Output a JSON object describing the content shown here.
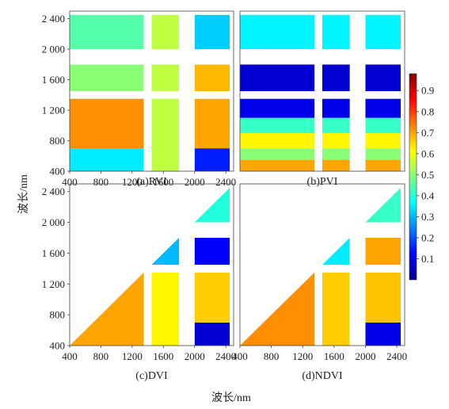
{
  "figure": {
    "xlabel": "波长/nm",
    "ylabel": "波长/nm",
    "colormap": "jet",
    "colorbar": {
      "range": [
        0,
        0.98
      ],
      "ticks": [
        "0.1",
        "0.2",
        "0.3",
        "0.4",
        "0.5",
        "0.6",
        "0.7",
        "0.8",
        "0.9"
      ]
    }
  },
  "chart_data": [
    {
      "type": "heatmap",
      "caption": "(a)RVI",
      "axis_range_nm": [
        400,
        2500
      ],
      "x_ticks": [
        "400",
        "800",
        "1200",
        "1600",
        "2000",
        "2400"
      ],
      "y_ticks": [
        "400",
        "800",
        "1 200",
        "1 600",
        "2 000",
        "2 400"
      ],
      "masked_bands_nm": [
        [
          1350,
          1450
        ],
        [
          1800,
          2000
        ]
      ],
      "region_values": [
        {
          "x_nm": [
            400,
            1350
          ],
          "y_nm": [
            400,
            700
          ],
          "value": 0.35
        },
        {
          "x_nm": [
            400,
            1350
          ],
          "y_nm": [
            700,
            1350
          ],
          "value": 0.72
        },
        {
          "x_nm": [
            400,
            1350
          ],
          "y_nm": [
            1450,
            1800
          ],
          "value": 0.5
        },
        {
          "x_nm": [
            400,
            1350
          ],
          "y_nm": [
            2000,
            2450
          ],
          "value": 0.45
        },
        {
          "x_nm": [
            1450,
            1800
          ],
          "y_nm": [
            400,
            2450
          ],
          "value": 0.55
        },
        {
          "x_nm": [
            2000,
            2450
          ],
          "y_nm": [
            400,
            700
          ],
          "value": 0.15
        },
        {
          "x_nm": [
            2000,
            2450
          ],
          "y_nm": [
            700,
            1350
          ],
          "value": 0.7
        },
        {
          "x_nm": [
            2000,
            2450
          ],
          "y_nm": [
            1450,
            1800
          ],
          "value": 0.68
        },
        {
          "x_nm": [
            2000,
            2450
          ],
          "y_nm": [
            2000,
            2450
          ],
          "value": 0.32
        }
      ]
    },
    {
      "type": "heatmap",
      "caption": "(b)PVI",
      "axis_range_nm": [
        400,
        2500
      ],
      "masked_bands_nm": [
        [
          1350,
          1450
        ],
        [
          1800,
          2000
        ]
      ],
      "row_values": [
        {
          "y_nm": [
            400,
            550
          ],
          "value": 0.7
        },
        {
          "y_nm": [
            550,
            700
          ],
          "value": 0.5
        },
        {
          "y_nm": [
            700,
            900
          ],
          "value": 0.62
        },
        {
          "y_nm": [
            900,
            1100
          ],
          "value": 0.42
        },
        {
          "y_nm": [
            1100,
            1350
          ],
          "value": 0.1
        },
        {
          "y_nm": [
            1450,
            1800
          ],
          "value": 0.08
        },
        {
          "y_nm": [
            2000,
            2450
          ],
          "value": 0.36
        }
      ]
    },
    {
      "type": "heatmap",
      "caption": "(c)DVI",
      "axis_range_nm": [
        400,
        2500
      ],
      "x_ticks": [
        "400",
        "800",
        "1200",
        "1600",
        "2000",
        "2400"
      ],
      "y_ticks": [
        "400",
        "800",
        "1 200",
        "1 600",
        "2 000",
        "2 400"
      ],
      "triangle": "lower",
      "masked_bands_nm": [
        [
          1350,
          1450
        ],
        [
          1800,
          2000
        ]
      ],
      "region_values": [
        {
          "x_nm": [
            400,
            1350
          ],
          "y_nm": [
            400,
            1350
          ],
          "value": 0.7
        },
        {
          "x_nm": [
            1450,
            1800
          ],
          "y_nm": [
            400,
            1350
          ],
          "value": 0.62
        },
        {
          "x_nm": [
            1450,
            1800
          ],
          "y_nm": [
            1450,
            1800
          ],
          "value": 0.3
        },
        {
          "x_nm": [
            2000,
            2450
          ],
          "y_nm": [
            400,
            700
          ],
          "value": 0.08
        },
        {
          "x_nm": [
            2000,
            2450
          ],
          "y_nm": [
            700,
            1350
          ],
          "value": 0.66
        },
        {
          "x_nm": [
            2000,
            2450
          ],
          "y_nm": [
            1450,
            1800
          ],
          "value": 0.12
        },
        {
          "x_nm": [
            2000,
            2450
          ],
          "y_nm": [
            2000,
            2450
          ],
          "value": 0.4
        }
      ]
    },
    {
      "type": "heatmap",
      "caption": "(d)NDVI",
      "axis_range_nm": [
        400,
        2500
      ],
      "x_ticks": [
        "400",
        "800",
        "1200",
        "1600",
        "2000",
        "2400"
      ],
      "triangle": "lower",
      "masked_bands_nm": [
        [
          1350,
          1450
        ],
        [
          1800,
          2000
        ]
      ],
      "region_values": [
        {
          "x_nm": [
            400,
            1350
          ],
          "y_nm": [
            400,
            1350
          ],
          "value": 0.72
        },
        {
          "x_nm": [
            1450,
            1800
          ],
          "y_nm": [
            400,
            1350
          ],
          "value": 0.66
        },
        {
          "x_nm": [
            1450,
            1800
          ],
          "y_nm": [
            1450,
            1800
          ],
          "value": 0.35
        },
        {
          "x_nm": [
            2000,
            2450
          ],
          "y_nm": [
            400,
            700
          ],
          "value": 0.1
        },
        {
          "x_nm": [
            2000,
            2450
          ],
          "y_nm": [
            700,
            1350
          ],
          "value": 0.67
        },
        {
          "x_nm": [
            2000,
            2450
          ],
          "y_nm": [
            1450,
            1800
          ],
          "value": 0.7
        },
        {
          "x_nm": [
            2000,
            2450
          ],
          "y_nm": [
            2000,
            2450
          ],
          "value": 0.42
        }
      ]
    }
  ]
}
